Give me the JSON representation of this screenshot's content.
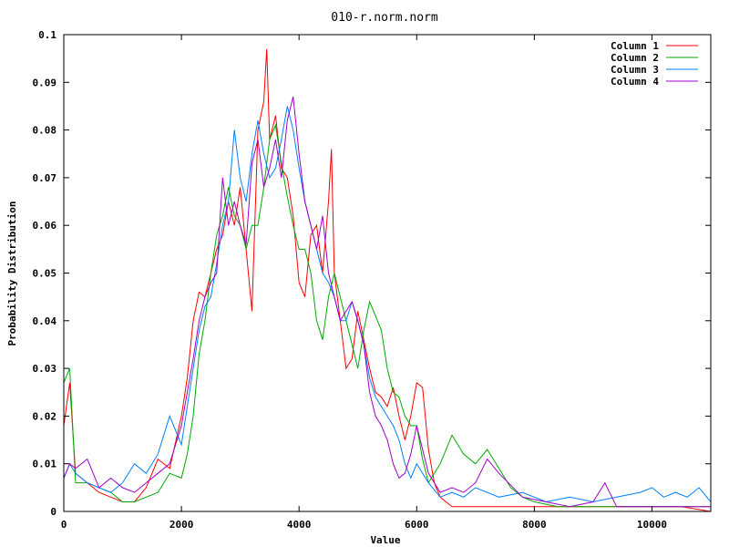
{
  "chart_data": {
    "type": "line",
    "title": "010-r.norm.norm",
    "xlabel": "Value",
    "ylabel": "Probability Distribution",
    "xlim": [
      0,
      11000
    ],
    "ylim": [
      0,
      0.1
    ],
    "x_ticks": [
      0,
      2000,
      4000,
      6000,
      8000,
      10000
    ],
    "x_tick_labels": [
      "0",
      "2000",
      "4000",
      "6000",
      "8000",
      "10000"
    ],
    "y_ticks": [
      0,
      0.01,
      0.02,
      0.03,
      0.04,
      0.05,
      0.06,
      0.07,
      0.08,
      0.09,
      0.1
    ],
    "y_tick_labels": [
      "0",
      "0.01",
      "0.02",
      "0.03",
      "0.04",
      "0.05",
      "0.06",
      "0.07",
      "0.08",
      "0.09",
      "0.1"
    ],
    "grid": false,
    "legend_position": "top-right",
    "series": [
      {
        "name": "Column 1",
        "color": "#ff0000",
        "x": [
          0,
          100,
          200,
          400,
          600,
          800,
          1000,
          1200,
          1400,
          1600,
          1800,
          2000,
          2100,
          2200,
          2300,
          2400,
          2500,
          2600,
          2700,
          2800,
          2900,
          3000,
          3100,
          3200,
          3300,
          3400,
          3450,
          3500,
          3600,
          3700,
          3800,
          3900,
          4000,
          4100,
          4200,
          4300,
          4400,
          4500,
          4550,
          4600,
          4700,
          4800,
          4900,
          5000,
          5100,
          5200,
          5300,
          5400,
          5500,
          5600,
          5700,
          5800,
          5900,
          6000,
          6100,
          6200,
          6300,
          6400,
          6500,
          6600,
          6800,
          7000,
          7500,
          8000,
          8500,
          9000,
          9500,
          10000,
          10500,
          11000
        ],
        "y": [
          0.018,
          0.027,
          0.008,
          0.006,
          0.004,
          0.003,
          0.002,
          0.002,
          0.005,
          0.011,
          0.009,
          0.02,
          0.028,
          0.04,
          0.046,
          0.045,
          0.05,
          0.055,
          0.058,
          0.065,
          0.06,
          0.068,
          0.055,
          0.042,
          0.08,
          0.086,
          0.097,
          0.078,
          0.083,
          0.072,
          0.07,
          0.062,
          0.048,
          0.045,
          0.058,
          0.06,
          0.05,
          0.065,
          0.076,
          0.05,
          0.04,
          0.03,
          0.032,
          0.042,
          0.036,
          0.03,
          0.025,
          0.024,
          0.022,
          0.026,
          0.02,
          0.015,
          0.02,
          0.027,
          0.026,
          0.013,
          0.006,
          0.003,
          0.002,
          0.001,
          0.001,
          0.001,
          0.001,
          0.001,
          0.001,
          0.001,
          0.001,
          0.001,
          0.001,
          0.0
        ]
      },
      {
        "name": "Column 2",
        "color": "#00aa00",
        "x": [
          0,
          100,
          200,
          400,
          600,
          800,
          1000,
          1200,
          1400,
          1600,
          1800,
          2000,
          2100,
          2200,
          2300,
          2400,
          2500,
          2600,
          2700,
          2800,
          2900,
          3000,
          3100,
          3200,
          3300,
          3400,
          3500,
          3600,
          3700,
          3800,
          3900,
          4000,
          4100,
          4200,
          4300,
          4400,
          4500,
          4600,
          4700,
          4800,
          4900,
          5000,
          5100,
          5200,
          5300,
          5400,
          5500,
          5600,
          5700,
          5800,
          5900,
          6000,
          6100,
          6200,
          6400,
          6600,
          6800,
          7000,
          7200,
          7400,
          7600,
          7800,
          8000,
          8400,
          8800,
          9200,
          9600,
          10000,
          10500,
          11000
        ],
        "y": [
          0.027,
          0.03,
          0.006,
          0.006,
          0.005,
          0.004,
          0.002,
          0.002,
          0.003,
          0.004,
          0.008,
          0.007,
          0.012,
          0.02,
          0.033,
          0.04,
          0.05,
          0.058,
          0.062,
          0.068,
          0.062,
          0.06,
          0.055,
          0.06,
          0.06,
          0.068,
          0.078,
          0.081,
          0.073,
          0.066,
          0.06,
          0.055,
          0.055,
          0.05,
          0.04,
          0.036,
          0.045,
          0.05,
          0.045,
          0.04,
          0.035,
          0.03,
          0.038,
          0.044,
          0.041,
          0.038,
          0.03,
          0.025,
          0.024,
          0.02,
          0.018,
          0.018,
          0.011,
          0.006,
          0.01,
          0.016,
          0.012,
          0.01,
          0.013,
          0.009,
          0.005,
          0.003,
          0.002,
          0.001,
          0.001,
          0.001,
          0.001,
          0.001,
          0.001,
          0.001
        ]
      },
      {
        "name": "Column 3",
        "color": "#0080ff",
        "x": [
          0,
          100,
          200,
          400,
          600,
          800,
          1000,
          1200,
          1400,
          1600,
          1800,
          2000,
          2100,
          2200,
          2300,
          2400,
          2500,
          2600,
          2700,
          2800,
          2900,
          3000,
          3100,
          3200,
          3300,
          3400,
          3500,
          3600,
          3700,
          3800,
          3900,
          4000,
          4100,
          4200,
          4300,
          4400,
          4500,
          4600,
          4700,
          4800,
          4900,
          5000,
          5100,
          5200,
          5300,
          5400,
          5500,
          5600,
          5700,
          5800,
          5900,
          6000,
          6200,
          6400,
          6600,
          6800,
          7000,
          7400,
          7800,
          8200,
          8600,
          9000,
          9400,
          9800,
          10000,
          10200,
          10400,
          10600,
          10800,
          11000
        ],
        "y": [
          0.007,
          0.01,
          0.008,
          0.006,
          0.005,
          0.004,
          0.006,
          0.01,
          0.008,
          0.012,
          0.02,
          0.014,
          0.022,
          0.03,
          0.038,
          0.043,
          0.045,
          0.052,
          0.06,
          0.065,
          0.08,
          0.07,
          0.065,
          0.075,
          0.082,
          0.075,
          0.07,
          0.072,
          0.078,
          0.085,
          0.08,
          0.072,
          0.065,
          0.06,
          0.055,
          0.05,
          0.048,
          0.045,
          0.04,
          0.04,
          0.044,
          0.04,
          0.035,
          0.028,
          0.024,
          0.022,
          0.02,
          0.018,
          0.015,
          0.01,
          0.007,
          0.01,
          0.006,
          0.003,
          0.004,
          0.003,
          0.005,
          0.003,
          0.004,
          0.002,
          0.003,
          0.002,
          0.003,
          0.004,
          0.005,
          0.003,
          0.004,
          0.003,
          0.005,
          0.002
        ]
      },
      {
        "name": "Column 4",
        "color": "#a000c8",
        "x": [
          0,
          100,
          200,
          400,
          600,
          800,
          1000,
          1200,
          1400,
          1600,
          1800,
          2000,
          2100,
          2200,
          2300,
          2400,
          2500,
          2600,
          2700,
          2800,
          2900,
          3000,
          3100,
          3200,
          3300,
          3400,
          3500,
          3600,
          3700,
          3800,
          3900,
          4000,
          4100,
          4200,
          4300,
          4400,
          4500,
          4600,
          4700,
          4800,
          4900,
          5000,
          5100,
          5200,
          5300,
          5400,
          5500,
          5600,
          5700,
          5800,
          5900,
          6000,
          6200,
          6400,
          6600,
          6800,
          7000,
          7200,
          7400,
          7800,
          8200,
          8600,
          9000,
          9200,
          9400,
          9800,
          10200,
          10600,
          11000
        ],
        "y": [
          0.007,
          0.01,
          0.009,
          0.011,
          0.005,
          0.007,
          0.005,
          0.004,
          0.006,
          0.008,
          0.01,
          0.018,
          0.025,
          0.032,
          0.04,
          0.045,
          0.048,
          0.05,
          0.07,
          0.06,
          0.065,
          0.06,
          0.056,
          0.073,
          0.078,
          0.068,
          0.072,
          0.078,
          0.07,
          0.082,
          0.087,
          0.075,
          0.065,
          0.06,
          0.055,
          0.062,
          0.05,
          0.045,
          0.04,
          0.042,
          0.044,
          0.04,
          0.035,
          0.025,
          0.02,
          0.018,
          0.015,
          0.01,
          0.007,
          0.008,
          0.012,
          0.018,
          0.008,
          0.004,
          0.005,
          0.004,
          0.006,
          0.011,
          0.008,
          0.003,
          0.002,
          0.001,
          0.002,
          0.006,
          0.001,
          0.001,
          0.001,
          0.001,
          0.001
        ]
      }
    ]
  }
}
